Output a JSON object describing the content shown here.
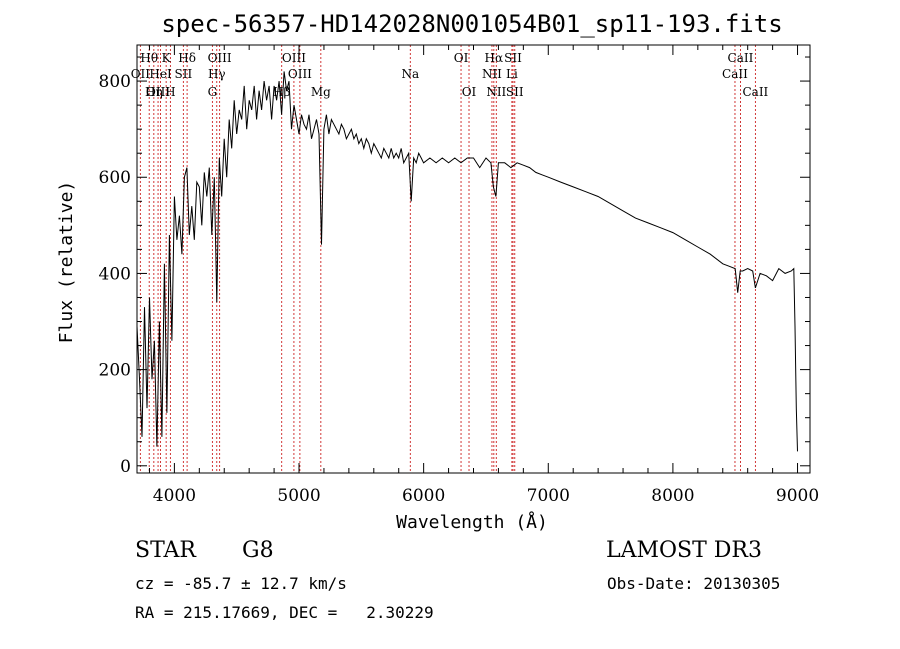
{
  "chart_data": {
    "type": "line",
    "title": "spec-56357-HD142028N001054B01_sp11-193.fits",
    "xlabel": "Wavelength (Å)",
    "ylabel": "Flux (relative)",
    "xlim": [
      3700,
      9100
    ],
    "ylim": [
      -15,
      875
    ],
    "xticks": [
      4000,
      5000,
      6000,
      7000,
      8000,
      9000
    ],
    "yticks": [
      0,
      200,
      400,
      600,
      800
    ],
    "series": [
      {
        "name": "flux",
        "x": [
          3700,
          3720,
          3740,
          3760,
          3780,
          3800,
          3820,
          3840,
          3860,
          3880,
          3900,
          3920,
          3940,
          3960,
          3980,
          4000,
          4020,
          4040,
          4060,
          4080,
          4100,
          4120,
          4140,
          4160,
          4180,
          4200,
          4220,
          4240,
          4260,
          4280,
          4300,
          4320,
          4340,
          4360,
          4380,
          4400,
          4420,
          4440,
          4460,
          4480,
          4500,
          4520,
          4540,
          4560,
          4580,
          4600,
          4620,
          4640,
          4660,
          4680,
          4700,
          4720,
          4740,
          4760,
          4780,
          4800,
          4820,
          4840,
          4860,
          4880,
          4900,
          4920,
          4940,
          4960,
          4980,
          5000,
          5020,
          5040,
          5060,
          5080,
          5100,
          5120,
          5140,
          5160,
          5180,
          5200,
          5220,
          5240,
          5260,
          5280,
          5300,
          5320,
          5340,
          5360,
          5380,
          5400,
          5420,
          5440,
          5460,
          5480,
          5500,
          5520,
          5540,
          5560,
          5580,
          5600,
          5620,
          5640,
          5660,
          5680,
          5700,
          5720,
          5740,
          5760,
          5780,
          5800,
          5820,
          5840,
          5860,
          5880,
          5900,
          5920,
          5940,
          5960,
          5980,
          6000,
          6050,
          6100,
          6150,
          6200,
          6250,
          6300,
          6350,
          6400,
          6450,
          6500,
          6540,
          6560,
          6580,
          6600,
          6650,
          6700,
          6750,
          6800,
          6850,
          6900,
          6950,
          7000,
          7100,
          7200,
          7300,
          7400,
          7500,
          7600,
          7700,
          7800,
          7900,
          8000,
          8100,
          8200,
          8300,
          8400,
          8450,
          8500,
          8520,
          8540,
          8560,
          8600,
          8640,
          8662,
          8700,
          8750,
          8800,
          8850,
          8900,
          8950,
          8970,
          8980,
          8990,
          9000
        ],
        "values": [
          290,
          180,
          60,
          330,
          120,
          350,
          180,
          260,
          40,
          300,
          60,
          420,
          110,
          480,
          260,
          560,
          470,
          520,
          440,
          600,
          620,
          480,
          540,
          470,
          590,
          580,
          500,
          610,
          560,
          620,
          480,
          600,
          340,
          640,
          560,
          680,
          600,
          720,
          660,
          760,
          690,
          740,
          720,
          790,
          700,
          760,
          740,
          790,
          720,
          780,
          740,
          800,
          760,
          790,
          720,
          790,
          760,
          800,
          730,
          820,
          780,
          800,
          700,
          750,
          720,
          690,
          730,
          710,
          700,
          730,
          680,
          700,
          720,
          690,
          460,
          700,
          730,
          690,
          720,
          710,
          700,
          690,
          710,
          700,
          680,
          690,
          700,
          680,
          690,
          670,
          680,
          660,
          680,
          670,
          650,
          670,
          660,
          650,
          640,
          660,
          650,
          640,
          660,
          640,
          650,
          640,
          660,
          630,
          640,
          650,
          550,
          640,
          630,
          650,
          640,
          630,
          640,
          630,
          640,
          630,
          640,
          630,
          640,
          640,
          620,
          640,
          630,
          580,
          560,
          630,
          630,
          620,
          630,
          625,
          620,
          610,
          605,
          600,
          590,
          580,
          570,
          560,
          545,
          530,
          515,
          505,
          495,
          485,
          470,
          455,
          440,
          420,
          415,
          410,
          360,
          405,
          405,
          410,
          405,
          370,
          400,
          395,
          385,
          410,
          400,
          405,
          410,
          290,
          120,
          30
        ]
      }
    ],
    "lines": [
      {
        "label": "Hθ",
        "x": 3798,
        "row": 0
      },
      {
        "label": "K",
        "x": 3934,
        "row": 0
      },
      {
        "label": "Hδ",
        "x": 4102,
        "row": 0
      },
      {
        "label": "OIII",
        "x": 4363,
        "row": 0
      },
      {
        "label": "OIII",
        "x": 4959,
        "row": 0
      },
      {
        "label": "OI",
        "x": 6300,
        "row": 0
      },
      {
        "label": "Hα",
        "x": 6563,
        "row": 0
      },
      {
        "label": "SII",
        "x": 6717,
        "row": 0
      },
      {
        "label": "CaII",
        "x": 8542,
        "row": 0
      },
      {
        "label": "OII",
        "x": 3727,
        "row": 1
      },
      {
        "label": "HeI",
        "x": 3889,
        "row": 1
      },
      {
        "label": "SII",
        "x": 4072,
        "row": 1
      },
      {
        "label": "Hγ",
        "x": 4340,
        "row": 1
      },
      {
        "label": "OIII",
        "x": 5007,
        "row": 1
      },
      {
        "label": "Na",
        "x": 5893,
        "row": 1
      },
      {
        "label": "NII",
        "x": 6548,
        "row": 1
      },
      {
        "label": "Li",
        "x": 6708,
        "row": 1
      },
      {
        "label": "CaII",
        "x": 8498,
        "row": 1
      },
      {
        "label": "OIII",
        "x": 3869,
        "row": 2
      },
      {
        "label": "Hη",
        "x": 3835,
        "row": 2
      },
      {
        "label": "H",
        "x": 3968,
        "row": 2
      },
      {
        "label": "G",
        "x": 4305,
        "row": 2
      },
      {
        "label": "Hβ",
        "x": 4861,
        "row": 2
      },
      {
        "label": "Mg",
        "x": 5175,
        "row": 2
      },
      {
        "label": "OI",
        "x": 6364,
        "row": 2
      },
      {
        "label": "NII",
        "x": 6583,
        "row": 2
      },
      {
        "label": "SII",
        "x": 6731,
        "row": 2
      },
      {
        "label": "CaII",
        "x": 8662,
        "row": 2
      }
    ]
  },
  "info": {
    "object_class": "STAR",
    "subclass": "G8",
    "survey": "LAMOST DR3",
    "redshift": "cz = -85.7 ± 12.7 km/s",
    "obs_date": "Obs-Date: 20130305",
    "coords": "RA = 215.17669, DEC =   2.30229"
  }
}
